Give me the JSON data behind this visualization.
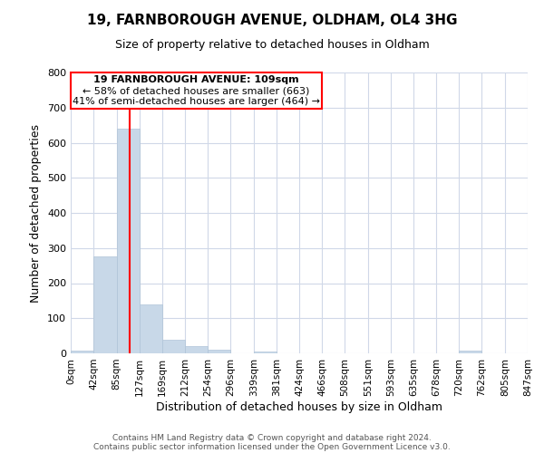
{
  "title": "19, FARNBOROUGH AVENUE, OLDHAM, OL4 3HG",
  "subtitle": "Size of property relative to detached houses in Oldham",
  "xlabel": "Distribution of detached houses by size in Oldham",
  "ylabel": "Number of detached properties",
  "bar_color": "#c8d8e8",
  "bar_edge_color": "#b0c4d8",
  "background_color": "#ffffff",
  "grid_color": "#d0d8e8",
  "bin_edges": [
    0,
    42,
    85,
    127,
    169,
    212,
    254,
    296,
    339,
    381,
    424,
    466,
    508,
    551,
    593,
    635,
    678,
    720,
    762,
    805,
    847
  ],
  "bin_labels": [
    "0sqm",
    "42sqm",
    "85sqm",
    "127sqm",
    "169sqm",
    "212sqm",
    "254sqm",
    "296sqm",
    "339sqm",
    "381sqm",
    "424sqm",
    "466sqm",
    "508sqm",
    "551sqm",
    "593sqm",
    "635sqm",
    "678sqm",
    "720sqm",
    "762sqm",
    "805sqm",
    "847sqm"
  ],
  "bar_heights": [
    8,
    275,
    641,
    140,
    38,
    20,
    10,
    0,
    5,
    0,
    0,
    0,
    0,
    0,
    0,
    0,
    0,
    7,
    0,
    0
  ],
  "ylim": [
    0,
    800
  ],
  "yticks": [
    0,
    100,
    200,
    300,
    400,
    500,
    600,
    700,
    800
  ],
  "property_size": 109,
  "property_label": "19 FARNBOROUGH AVENUE: 109sqm",
  "annotation_line1": "← 58% of detached houses are smaller (663)",
  "annotation_line2": "41% of semi-detached houses are larger (464) →",
  "red_line_x": 109,
  "footer_line1": "Contains HM Land Registry data © Crown copyright and database right 2024.",
  "footer_line2": "Contains public sector information licensed under the Open Government Licence v3.0."
}
